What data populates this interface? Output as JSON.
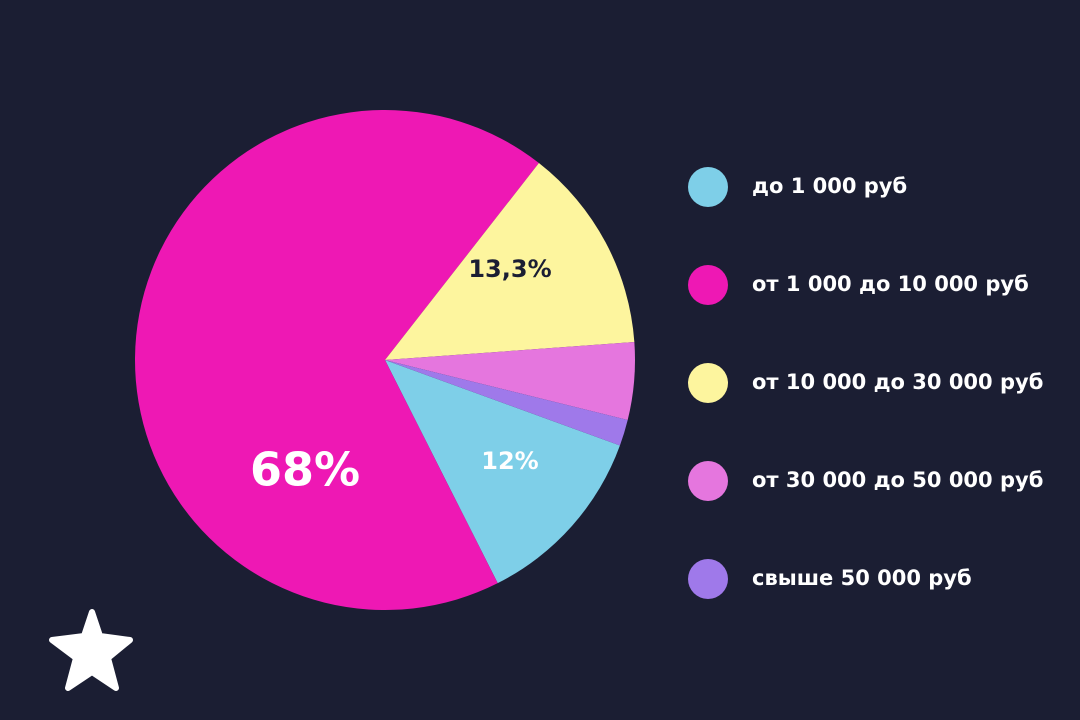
{
  "chart_data": {
    "type": "pie",
    "categories": [
      "до 1 000 руб",
      "от 1 000 до 10 000 руб",
      "от 10 000 до 30 000 руб",
      "от 30 000 до 50 000 руб",
      "свыше 50 000 руб"
    ],
    "values": [
      12,
      68,
      13.3,
      5,
      1.7
    ],
    "value_labels": [
      "12%",
      "68%",
      "13,3%",
      null,
      null
    ],
    "colors": [
      "#7ecfe8",
      "#ee18b4",
      "#fdf59e",
      "#e576de",
      "#9f79ea"
    ]
  }
}
